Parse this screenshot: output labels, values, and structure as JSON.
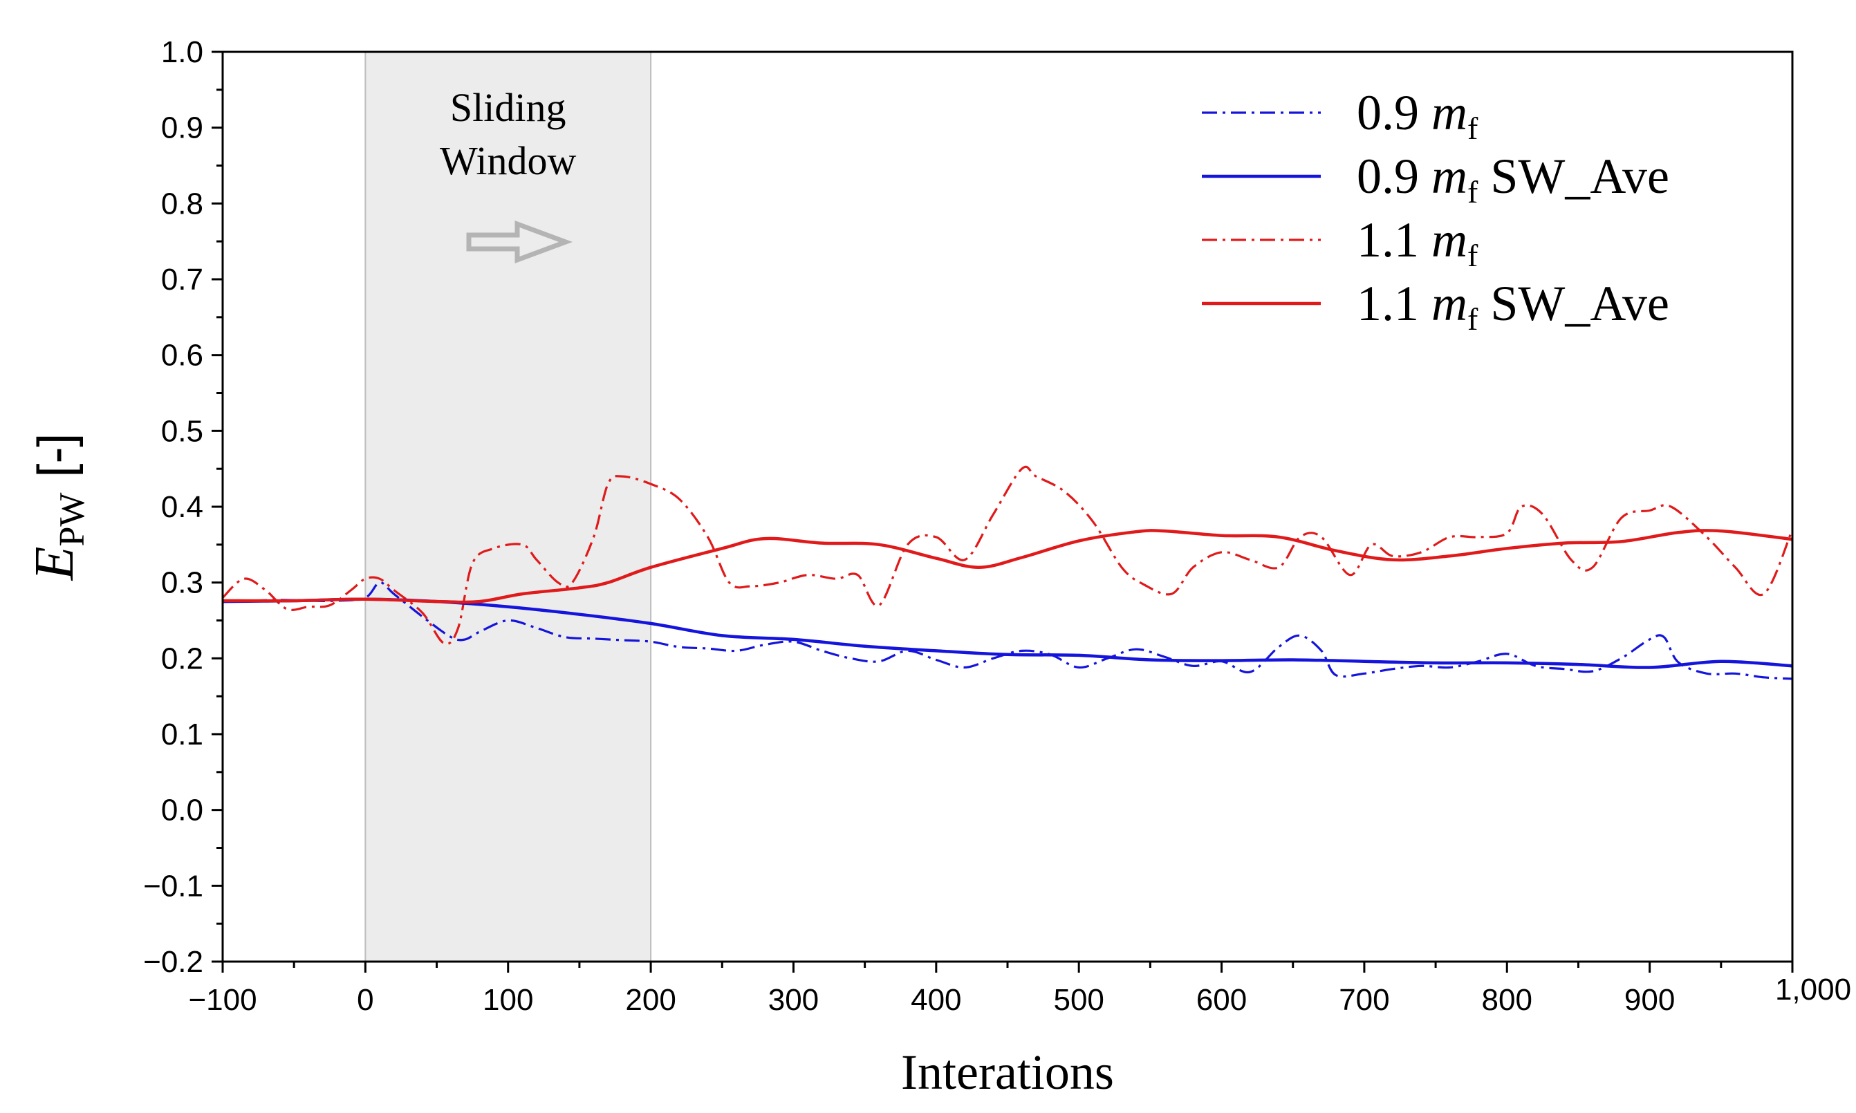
{
  "chart_data": {
    "type": "line",
    "title": "",
    "xlabel": "Interations",
    "ylabel": {
      "main": "E",
      "subscript": "PW",
      "unit": "[-]"
    },
    "xlim": [
      -100,
      1000
    ],
    "ylim": [
      -0.2,
      1.0
    ],
    "x_ticks": [
      -100,
      0,
      100,
      200,
      300,
      400,
      500,
      600,
      700,
      800,
      900,
      1000
    ],
    "x_tick_labels": [
      "−100",
      "0",
      "100",
      "200",
      "300",
      "400",
      "500",
      "600",
      "700",
      "800",
      "900",
      "1,000"
    ],
    "y_ticks": [
      -0.2,
      -0.1,
      0.0,
      0.1,
      0.2,
      0.3,
      0.4,
      0.5,
      0.6,
      0.7,
      0.8,
      0.9,
      1.0
    ],
    "y_tick_labels": [
      "−0.2",
      "−0.1",
      "0.0",
      "0.1",
      "0.2",
      "0.3",
      "0.4",
      "0.5",
      "0.6",
      "0.7",
      "0.8",
      "0.9",
      "1.0"
    ],
    "grid": false,
    "legend_position": "top-right",
    "sliding_window": {
      "x_start": 0,
      "x_end": 200,
      "label_line1": "Sliding",
      "label_line2": "Window",
      "fill_color": "#ececec",
      "arrow_color": "#b4b4b4"
    },
    "colors": {
      "blue": "#1414dc",
      "red": "#e01a1a"
    },
    "series": [
      {
        "name": "0.9 m_f",
        "legend_prefix": "0.9 ",
        "legend_italic": "m",
        "legend_sub": "f",
        "legend_suffix": "",
        "color": "#1414dc",
        "style": "dashdot",
        "x": [
          -100,
          -80,
          -60,
          -40,
          -20,
          0,
          10,
          20,
          40,
          60,
          70,
          80,
          100,
          120,
          140,
          160,
          180,
          200,
          220,
          240,
          260,
          280,
          300,
          320,
          340,
          360,
          380,
          400,
          420,
          440,
          460,
          480,
          500,
          520,
          540,
          560,
          580,
          600,
          620,
          640,
          655,
          670,
          680,
          700,
          720,
          740,
          760,
          780,
          800,
          820,
          840,
          860,
          880,
          900,
          910,
          920,
          940,
          960,
          980,
          1000
        ],
        "y": [
          0.275,
          0.276,
          0.277,
          0.276,
          0.276,
          0.28,
          0.3,
          0.285,
          0.255,
          0.228,
          0.225,
          0.235,
          0.25,
          0.24,
          0.228,
          0.226,
          0.224,
          0.222,
          0.215,
          0.213,
          0.21,
          0.218,
          0.222,
          0.21,
          0.2,
          0.196,
          0.21,
          0.198,
          0.188,
          0.2,
          0.21,
          0.205,
          0.188,
          0.2,
          0.212,
          0.202,
          0.19,
          0.196,
          0.182,
          0.215,
          0.23,
          0.21,
          0.178,
          0.18,
          0.186,
          0.19,
          0.188,
          0.196,
          0.206,
          0.19,
          0.186,
          0.183,
          0.2,
          0.225,
          0.228,
          0.195,
          0.18,
          0.18,
          0.175,
          0.173
        ]
      },
      {
        "name": "0.9 m_f SW_Ave",
        "legend_prefix": "0.9 ",
        "legend_italic": "m",
        "legend_sub": "f",
        "legend_suffix": " SW_Ave",
        "color": "#1414dc",
        "style": "solid",
        "x": [
          -100,
          -50,
          0,
          50,
          100,
          150,
          200,
          250,
          300,
          350,
          400,
          450,
          500,
          550,
          600,
          650,
          700,
          750,
          800,
          850,
          900,
          950,
          1000
        ],
        "y": [
          0.275,
          0.276,
          0.278,
          0.275,
          0.268,
          0.258,
          0.246,
          0.23,
          0.225,
          0.216,
          0.21,
          0.205,
          0.204,
          0.198,
          0.197,
          0.198,
          0.196,
          0.194,
          0.194,
          0.192,
          0.188,
          0.196,
          0.19
        ]
      },
      {
        "name": "1.1 m_f",
        "legend_prefix": "1.1 ",
        "legend_italic": "m",
        "legend_sub": "f",
        "legend_suffix": "",
        "color": "#e01a1a",
        "style": "dashdot",
        "x": [
          -100,
          -85,
          -70,
          -55,
          -40,
          -25,
          -10,
          0,
          10,
          20,
          40,
          55,
          65,
          75,
          90,
          110,
          120,
          135,
          145,
          160,
          170,
          180,
          200,
          220,
          240,
          255,
          270,
          290,
          310,
          330,
          345,
          360,
          380,
          400,
          420,
          440,
          460,
          470,
          490,
          510,
          530,
          545,
          565,
          580,
          600,
          620,
          640,
          655,
          670,
          690,
          705,
          720,
          740,
          760,
          780,
          800,
          810,
          825,
          845,
          860,
          880,
          900,
          915,
          940,
          960,
          980,
          1000
        ],
        "y": [
          0.28,
          0.305,
          0.29,
          0.265,
          0.268,
          0.27,
          0.29,
          0.305,
          0.305,
          0.29,
          0.26,
          0.22,
          0.24,
          0.325,
          0.345,
          0.35,
          0.33,
          0.3,
          0.3,
          0.36,
          0.43,
          0.44,
          0.43,
          0.41,
          0.36,
          0.3,
          0.295,
          0.3,
          0.31,
          0.305,
          0.31,
          0.27,
          0.35,
          0.36,
          0.33,
          0.39,
          0.45,
          0.44,
          0.42,
          0.38,
          0.32,
          0.298,
          0.285,
          0.32,
          0.34,
          0.33,
          0.32,
          0.36,
          0.36,
          0.31,
          0.35,
          0.335,
          0.34,
          0.36,
          0.36,
          0.365,
          0.4,
          0.39,
          0.33,
          0.32,
          0.385,
          0.395,
          0.4,
          0.36,
          0.32,
          0.285,
          0.37
        ]
      },
      {
        "name": "1.1 m_f SW_Ave",
        "legend_prefix": "1.1 ",
        "legend_italic": "m",
        "legend_sub": "f",
        "legend_suffix": " SW_Ave",
        "color": "#e01a1a",
        "style": "solid",
        "x": [
          -100,
          -50,
          0,
          50,
          80,
          110,
          150,
          170,
          200,
          250,
          280,
          320,
          360,
          400,
          430,
          460,
          500,
          540,
          560,
          600,
          640,
          680,
          720,
          760,
          800,
          840,
          880,
          920,
          950,
          1000
        ],
        "y": [
          0.276,
          0.276,
          0.278,
          0.275,
          0.275,
          0.285,
          0.293,
          0.3,
          0.32,
          0.345,
          0.358,
          0.352,
          0.35,
          0.332,
          0.32,
          0.333,
          0.355,
          0.367,
          0.368,
          0.362,
          0.36,
          0.342,
          0.33,
          0.335,
          0.345,
          0.352,
          0.354,
          0.366,
          0.368,
          0.357
        ]
      }
    ]
  }
}
